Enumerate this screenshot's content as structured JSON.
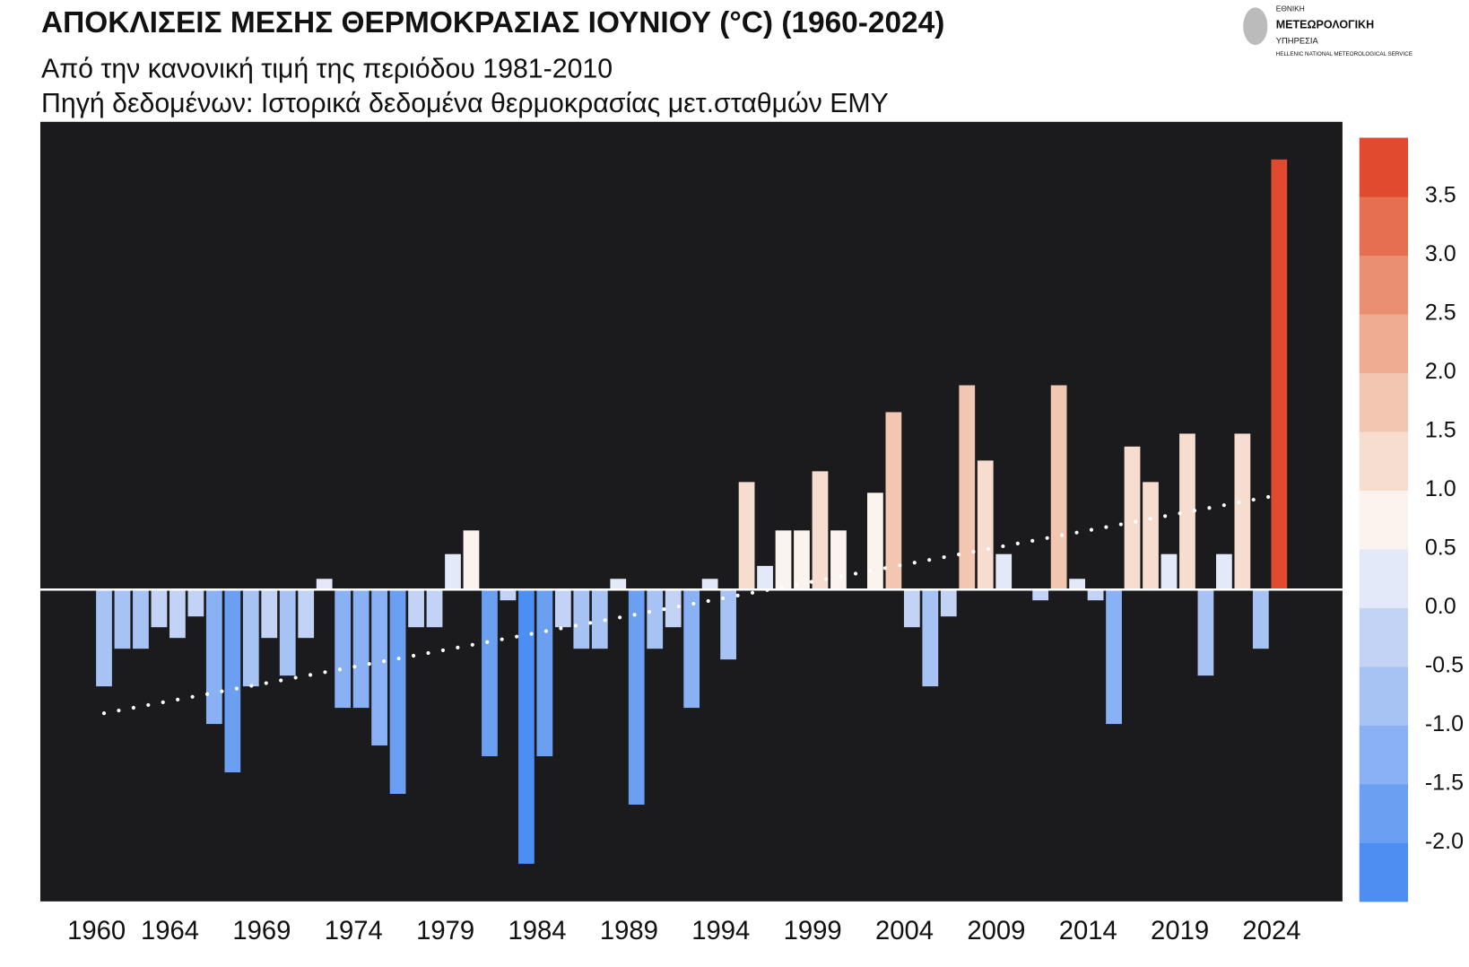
{
  "chart_data": {
    "type": "bar",
    "title": "ΑΠΟΚΛΙΣΕΙΣ ΜΕΣΗΣ ΘΕΡΜΟΚΡΑΣΙΑΣ  ΙΟΥΝΙΟΥ (°C) (1960-2024)",
    "subtitle": [
      "Από την κανονική τιμή της περιόδου 1981-2010",
      "Πηγή δεδομένων: Ιστορικά δεδομένα θερμοκρασίας μετ.σταθμών ΕΜΥ"
    ],
    "logo": [
      "ΕΘΝΙΚΗ",
      "ΜΕΤΕΩΡΟΛΟΓΙΚΗ",
      "ΥΠΗΡΕΣΙΑ",
      "HELLENIC NATIONAL METEOROLOGICAL SERVICE"
    ],
    "categories": [
      "1960",
      null,
      null,
      null,
      "1964",
      null,
      null,
      null,
      null,
      "1969",
      null,
      null,
      null,
      null,
      "1974",
      null,
      null,
      null,
      null,
      "1979",
      null,
      null,
      null,
      null,
      "1984",
      null,
      null,
      null,
      null,
      "1989",
      null,
      null,
      null,
      null,
      "1994",
      null,
      null,
      null,
      null,
      "1999",
      null,
      null,
      null,
      null,
      "2004",
      null,
      null,
      null,
      null,
      "2009",
      null,
      null,
      null,
      null,
      "2014",
      null,
      null,
      null,
      null,
      "2019",
      null,
      null,
      null,
      null,
      "2024"
    ],
    "values": [
      -0.9,
      -0.55,
      -0.55,
      -0.35,
      -0.45,
      -0.25,
      -1.25,
      -1.7,
      -0.9,
      -0.45,
      -0.8,
      -0.45,
      0.1,
      -1.1,
      -1.1,
      -1.45,
      -1.9,
      -0.35,
      -0.35,
      0.33,
      0.55,
      -1.55,
      -0.1,
      -2.55,
      -1.55,
      -0.35,
      -0.55,
      -0.55,
      0.1,
      -2.0,
      -0.55,
      -0.35,
      -1.1,
      0.1,
      -0.65,
      1.0,
      0.22,
      0.55,
      0.55,
      1.1,
      0.55,
      0,
      0.9,
      1.65,
      -0.35,
      -0.9,
      -0.25,
      1.9,
      1.2,
      0.33,
      0,
      -0.1,
      1.9,
      0.1,
      -0.1,
      -1.25,
      1.33,
      1.0,
      0.33,
      1.45,
      -0.8,
      0.33,
      1.45,
      -0.55,
      4.0
    ],
    "ylim": [
      -2.9,
      4.35
    ],
    "trend": {
      "x": [
        1960,
        2024
      ],
      "values": [
        -1.15,
        0.88
      ],
      "color": "#ffffff"
    },
    "background": "#1b1b1d",
    "colorbar": {
      "clim": [
        -2.5,
        4.0
      ],
      "colors": [
        "#4d8ef2",
        "#6a9ff2",
        "#89b1f3",
        "#a7c3f4",
        "#c3d3f6",
        "#e4e9f9",
        "#fbf3ee",
        "#f6ddd0",
        "#f3c6b1",
        "#efac92",
        "#eb8f72",
        "#e66f52",
        "#e24a30"
      ],
      "ticks": [
        {
          "value": -2.0,
          "label": "-2.0"
        },
        -1.5,
        {
          "value": -1.0,
          "label": "-1.0"
        },
        -0.5,
        {
          "value": 0.0,
          "label": "0.0"
        },
        0.5,
        {
          "value": 1.0,
          "label": "1.0"
        },
        1.5,
        {
          "value": 2.0,
          "label": "2.0"
        },
        2.5,
        {
          "value": 3.0,
          "label": "3.0"
        },
        3.5
      ]
    }
  }
}
